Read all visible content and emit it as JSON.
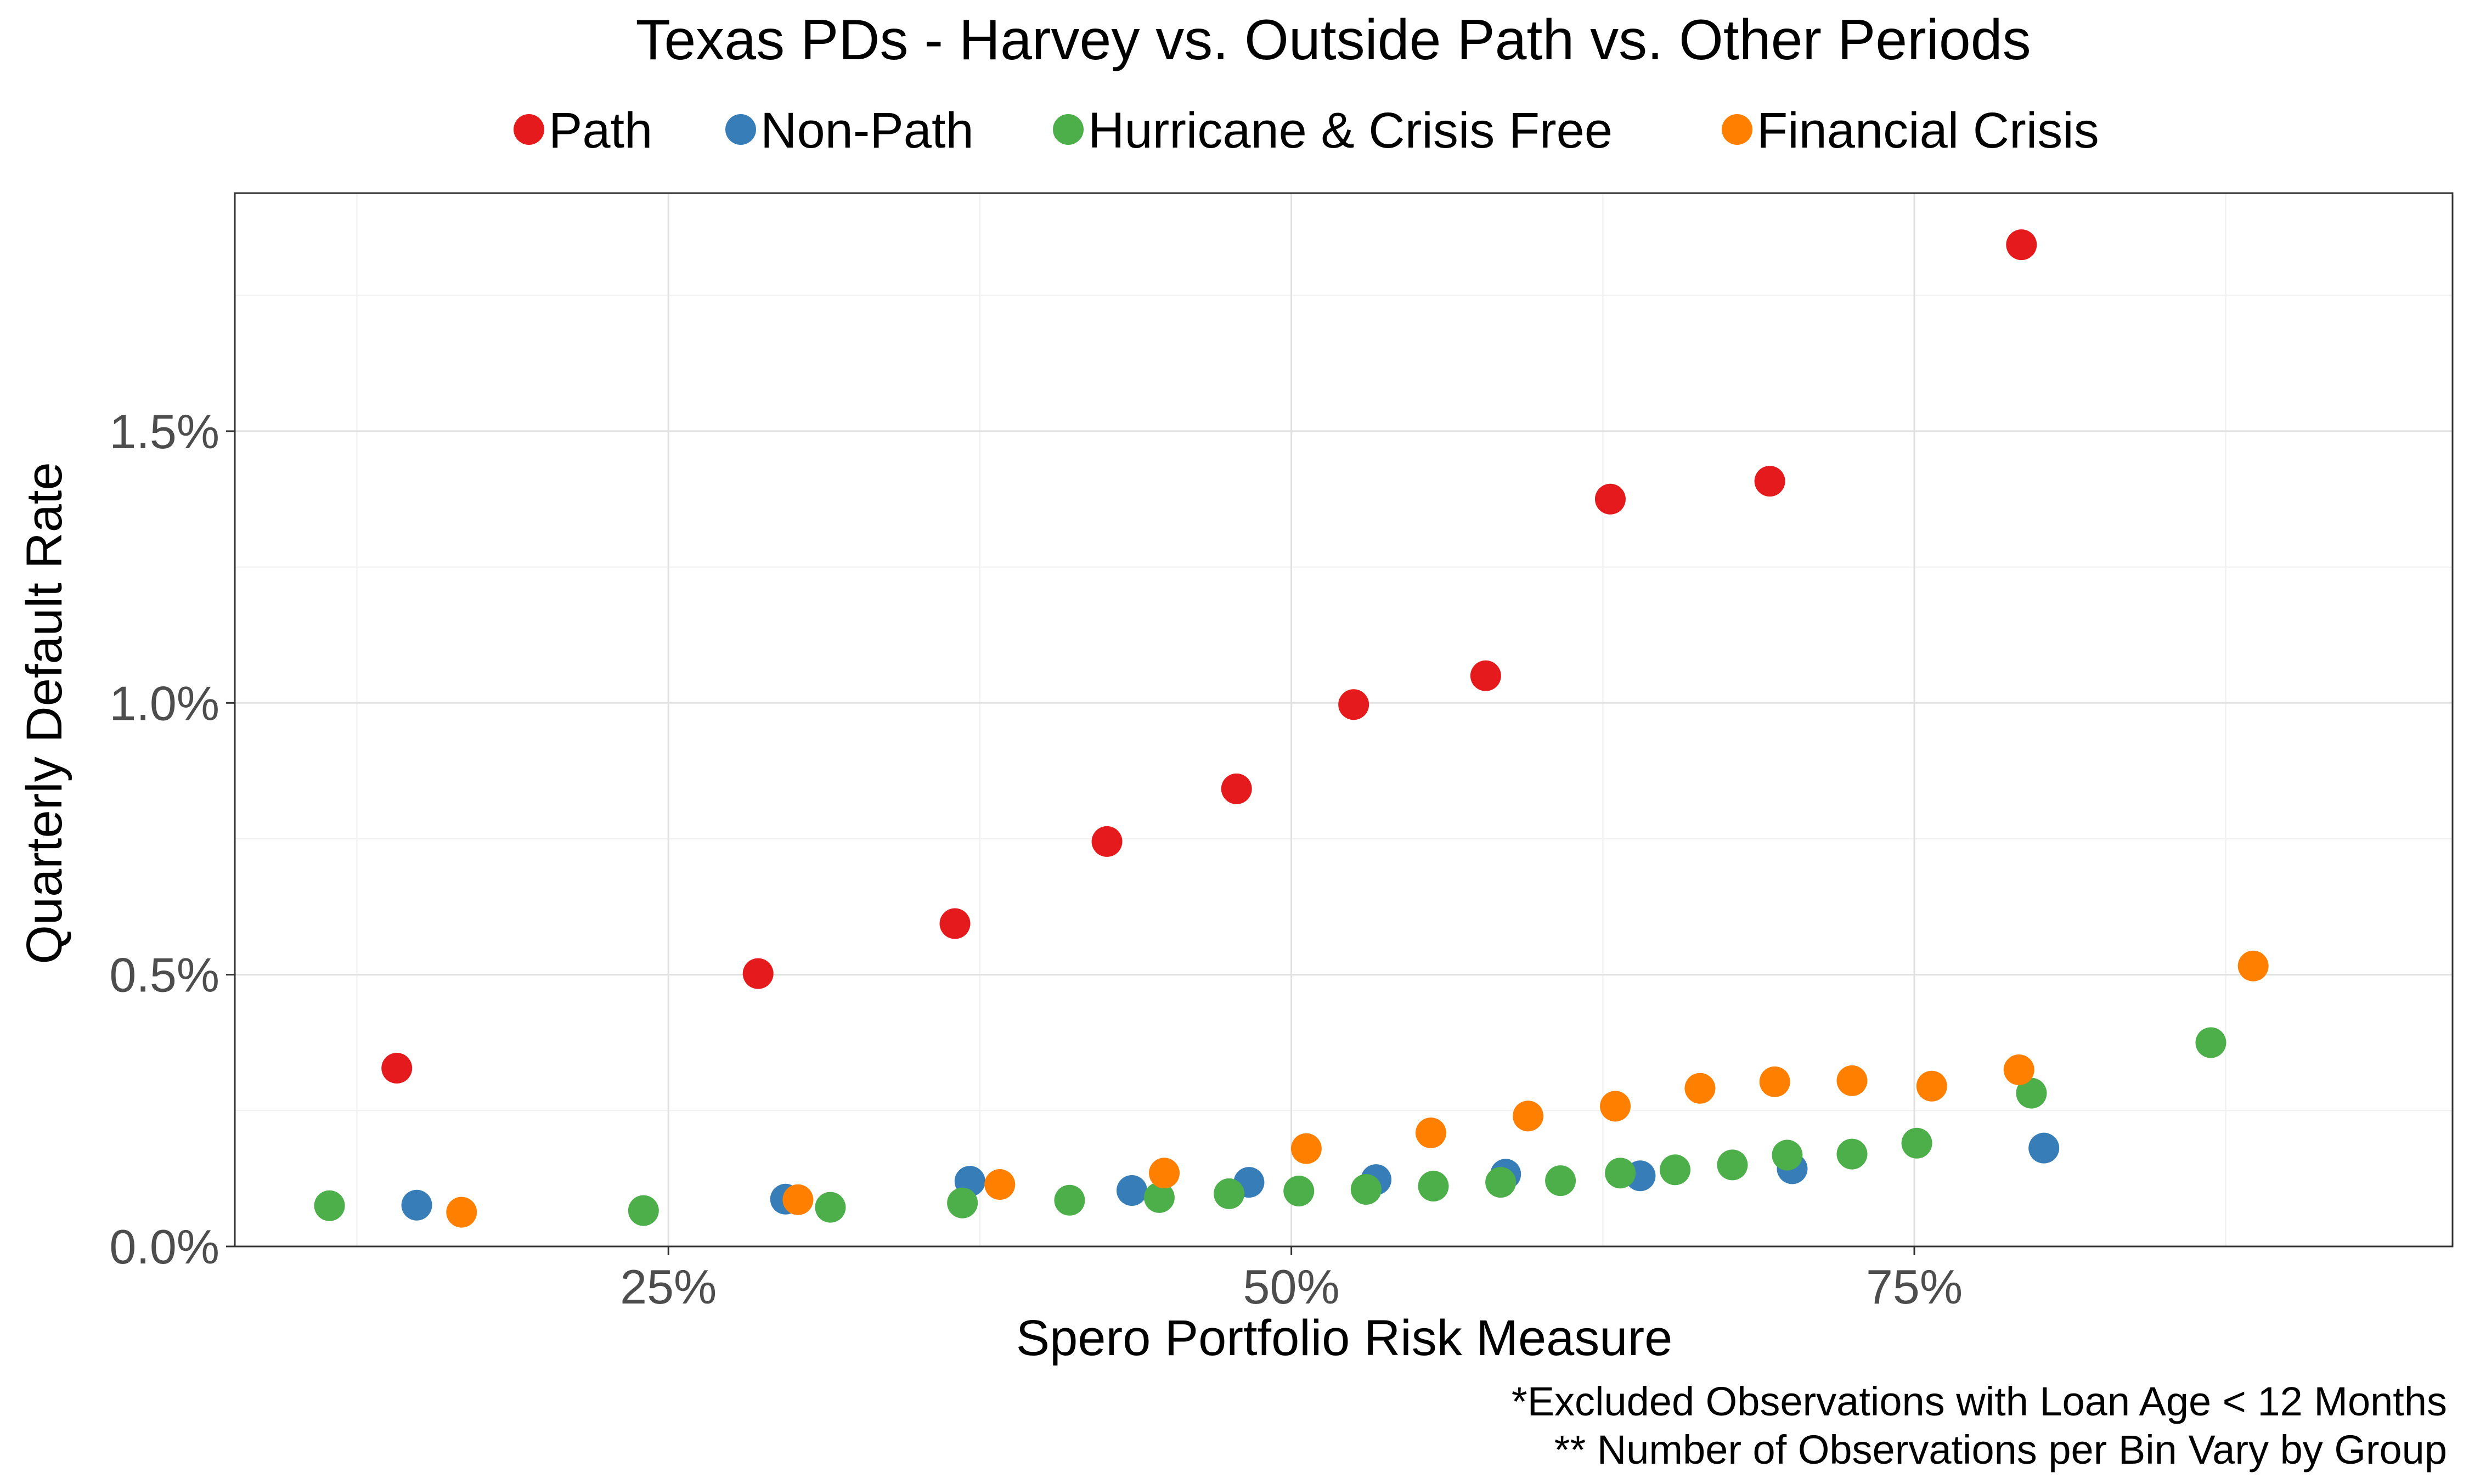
{
  "chart_data": {
    "type": "scatter",
    "title": "Texas PDs - Harvey vs. Outside Path vs. Other Periods",
    "xlabel": "Spero Portfolio Risk Measure",
    "ylabel": "Quarterly Default Rate",
    "xlim": [
      0.076,
      0.966
    ],
    "ylim": [
      0.0,
      0.01938
    ],
    "x_ticks": [
      {
        "value": 0.25,
        "label": "25%"
      },
      {
        "value": 0.5,
        "label": "50%"
      },
      {
        "value": 0.75,
        "label": "75%"
      }
    ],
    "y_ticks": [
      {
        "value": 0.0,
        "label": "0.0%"
      },
      {
        "value": 0.005,
        "label": "0.5%"
      },
      {
        "value": 0.01,
        "label": "1.0%"
      },
      {
        "value": 0.015,
        "label": "1.5%"
      }
    ],
    "x_minor": [
      0.125,
      0.375,
      0.625,
      0.875
    ],
    "y_minor": [
      0.0025,
      0.0075,
      0.0125,
      0.0175
    ],
    "grid": true,
    "legend_position": "top",
    "captions": [
      "*Excluded Observations with Loan Age < 12 Months",
      "** Number of Observations per Bin Vary by Group"
    ],
    "series": [
      {
        "name": "Path",
        "color": "#e41a1c",
        "points": [
          {
            "x": 0.141,
            "y": 0.00328
          },
          {
            "x": 0.286,
            "y": 0.00502
          },
          {
            "x": 0.365,
            "y": 0.00594
          },
          {
            "x": 0.426,
            "y": 0.00745
          },
          {
            "x": 0.478,
            "y": 0.00842
          },
          {
            "x": 0.525,
            "y": 0.00997
          },
          {
            "x": 0.578,
            "y": 0.0105
          },
          {
            "x": 0.628,
            "y": 0.01375
          },
          {
            "x": 0.692,
            "y": 0.01408
          },
          {
            "x": 0.793,
            "y": 0.01843
          }
        ]
      },
      {
        "name": "Non-Path",
        "color": "#377eb8",
        "points": [
          {
            "x": 0.149,
            "y": 0.00076
          },
          {
            "x": 0.297,
            "y": 0.00087
          },
          {
            "x": 0.371,
            "y": 0.0012
          },
          {
            "x": 0.436,
            "y": 0.00103
          },
          {
            "x": 0.483,
            "y": 0.00118
          },
          {
            "x": 0.534,
            "y": 0.00123
          },
          {
            "x": 0.586,
            "y": 0.00133
          },
          {
            "x": 0.64,
            "y": 0.0013
          },
          {
            "x": 0.701,
            "y": 0.00143
          },
          {
            "x": 0.802,
            "y": 0.00181
          }
        ]
      },
      {
        "name": "Hurricane & Crisis Free",
        "color": "#4daf4a",
        "points": [
          {
            "x": 0.114,
            "y": 0.00075
          },
          {
            "x": 0.24,
            "y": 0.00066
          },
          {
            "x": 0.315,
            "y": 0.00072
          },
          {
            "x": 0.368,
            "y": 0.0008
          },
          {
            "x": 0.411,
            "y": 0.00085
          },
          {
            "x": 0.447,
            "y": 0.0009
          },
          {
            "x": 0.475,
            "y": 0.00097
          },
          {
            "x": 0.503,
            "y": 0.00102
          },
          {
            "x": 0.53,
            "y": 0.00105
          },
          {
            "x": 0.557,
            "y": 0.00111
          },
          {
            "x": 0.584,
            "y": 0.00118
          },
          {
            "x": 0.608,
            "y": 0.00121
          },
          {
            "x": 0.632,
            "y": 0.00135
          },
          {
            "x": 0.654,
            "y": 0.00141
          },
          {
            "x": 0.677,
            "y": 0.0015
          },
          {
            "x": 0.699,
            "y": 0.00168
          },
          {
            "x": 0.725,
            "y": 0.0017
          },
          {
            "x": 0.751,
            "y": 0.0019
          },
          {
            "x": 0.797,
            "y": 0.00282
          },
          {
            "x": 0.869,
            "y": 0.00375
          }
        ]
      },
      {
        "name": "Financial Crisis",
        "color": "#ff7f00",
        "points": [
          {
            "x": 0.167,
            "y": 0.00063
          },
          {
            "x": 0.302,
            "y": 0.00086
          },
          {
            "x": 0.383,
            "y": 0.00114
          },
          {
            "x": 0.449,
            "y": 0.00135
          },
          {
            "x": 0.506,
            "y": 0.0018
          },
          {
            "x": 0.556,
            "y": 0.00209
          },
          {
            "x": 0.595,
            "y": 0.0024
          },
          {
            "x": 0.63,
            "y": 0.00258
          },
          {
            "x": 0.664,
            "y": 0.00291
          },
          {
            "x": 0.694,
            "y": 0.00303
          },
          {
            "x": 0.725,
            "y": 0.00305
          },
          {
            "x": 0.757,
            "y": 0.00295
          },
          {
            "x": 0.792,
            "y": 0.00325
          },
          {
            "x": 0.886,
            "y": 0.00516
          }
        ]
      }
    ]
  }
}
